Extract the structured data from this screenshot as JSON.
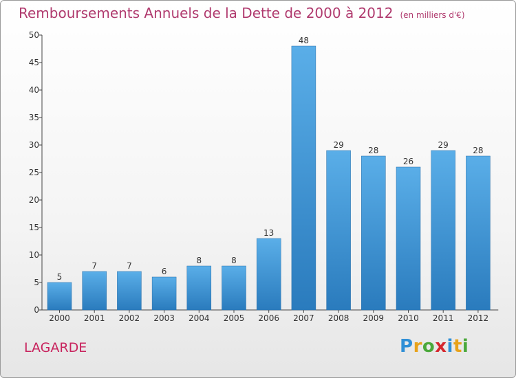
{
  "title": "Remboursements Annuels de la Dette de 2000 à 2012",
  "subtitle": "(en milliers d'€)",
  "commune": "LAGARDE",
  "logo": {
    "text": "Proxiti",
    "letters": [
      {
        "char": "P",
        "color": "#2f8fd6"
      },
      {
        "char": "r",
        "color": "#e8a21a"
      },
      {
        "char": "o",
        "color": "#4aa83a"
      },
      {
        "char": "x",
        "color": "#d5262c"
      },
      {
        "char": "i",
        "color": "#2f8fd6"
      },
      {
        "char": "t",
        "color": "#e8a21a"
      },
      {
        "char": "i",
        "color": "#4aa83a"
      }
    ]
  },
  "chart_data": {
    "type": "bar",
    "categories": [
      "2000",
      "2001",
      "2002",
      "2003",
      "2004",
      "2005",
      "2006",
      "2007",
      "2008",
      "2009",
      "2010",
      "2011",
      "2012"
    ],
    "values": [
      5,
      7,
      7,
      6,
      8,
      8,
      13,
      48,
      29,
      28,
      26,
      29,
      28
    ],
    "ylim": [
      0,
      50
    ],
    "yticks": [
      0,
      5,
      10,
      15,
      20,
      25,
      30,
      35,
      40,
      45,
      50
    ],
    "xlabel": "",
    "ylabel": "",
    "grid": false,
    "bar_color_top": "#5aaee8",
    "bar_color_bottom": "#2a7bbd"
  }
}
